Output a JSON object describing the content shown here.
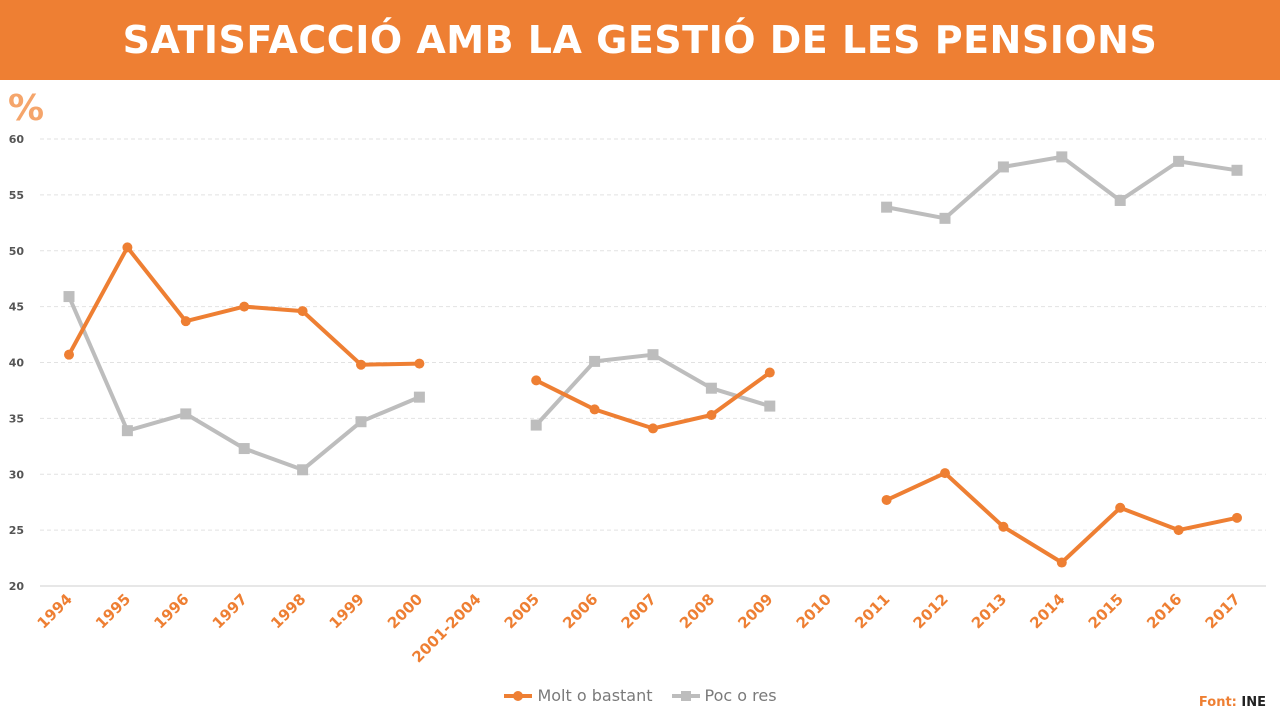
{
  "title": "SATISFACCIÓ AMB LA GESTIÓ DE LES PENSIONS",
  "unit_label": "%",
  "source": {
    "label": "Font:",
    "value": "INE"
  },
  "colors": {
    "accent": "#ee7f33",
    "secondary": "#bdbdbd",
    "tick_text": "#555555"
  },
  "chart_data": {
    "type": "line",
    "title": "SATISFACCIÓ AMB LA GESTIÓ DE LES PENSIONS",
    "xlabel": "",
    "ylabel": "%",
    "ylim": [
      20,
      60
    ],
    "yticks": [
      20,
      25,
      30,
      35,
      40,
      45,
      50,
      55,
      60
    ],
    "grid": true,
    "legend": "bottom-center",
    "categories": [
      "1994",
      "1995",
      "1996",
      "1997",
      "1998",
      "1999",
      "2000",
      "2001-2004",
      "2005",
      "2006",
      "2007",
      "2008",
      "2009",
      "2010",
      "2011",
      "2012",
      "2013",
      "2014",
      "2015",
      "2016",
      "2017"
    ],
    "series": [
      {
        "name": "Molt o bastant",
        "color": "#ee7f33",
        "marker": "circle",
        "values": [
          40.7,
          50.3,
          43.7,
          45.0,
          44.6,
          39.8,
          39.9,
          null,
          38.4,
          35.8,
          34.1,
          35.3,
          39.1,
          null,
          27.7,
          30.1,
          25.3,
          22.1,
          27.0,
          25.0,
          26.1
        ]
      },
      {
        "name": "Poc o res",
        "color": "#bdbdbd",
        "marker": "square",
        "values": [
          45.9,
          33.9,
          35.4,
          32.3,
          30.4,
          34.7,
          36.9,
          null,
          34.4,
          40.1,
          40.7,
          37.7,
          36.1,
          null,
          53.9,
          52.9,
          57.5,
          58.4,
          54.5,
          58.0,
          57.2
        ]
      }
    ]
  }
}
